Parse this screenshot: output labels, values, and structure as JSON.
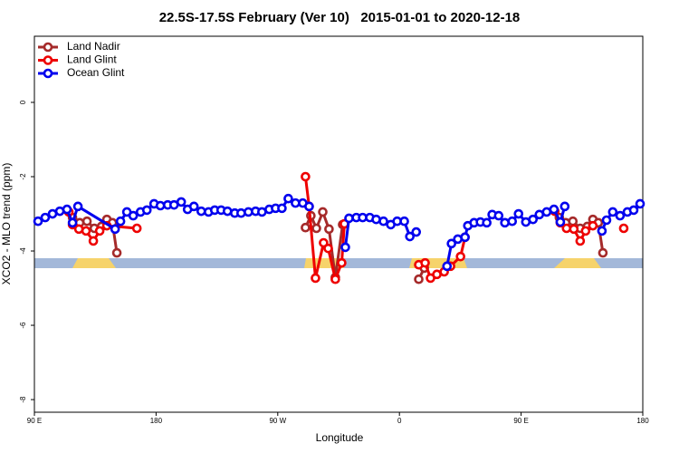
{
  "chart_data": {
    "type": "line",
    "title": "22.5S-17.5S February (Ver 10)   2015-01-01 to 2020-12-18",
    "x_label": "Longitude",
    "y_label": "XCO2 - MLO trend (ppm)",
    "xlim": [
      90,
      540
    ],
    "xticks": [
      {
        "value": 90,
        "label": "90 E"
      },
      180,
      {
        "value": 270,
        "label": "90 W"
      },
      {
        "value": 360,
        "label": "0"
      },
      {
        "value": 450,
        "label": "90 E"
      },
      {
        "value": 540,
        "label": "180"
      }
    ],
    "ylim": [
      -8.34,
      1.78
    ],
    "yticks": [
      0,
      -2,
      -4,
      -6,
      -8
    ],
    "legend": "top-left",
    "series": [
      {
        "name": "Land Nadir",
        "color": "#a52a2a",
        "x": [
          114.1,
          118.2,
          123.5,
          128.9,
          134.3,
          139.6,
          143.6,
          147.7,
          151.0,
          null,
          290.5,
          294.5,
          298.6,
          303.3,
          307.9,
          312.6,
          318.0,
          null,
          374.3,
          378.4,
          null,
          474.3,
          478.3,
          483.0,
          488.3,
          493.7,
          499.0,
          503.1,
          507.1,
          510.5
        ],
        "values": [
          -2.9,
          -3.1,
          -3.24,
          -3.2,
          -3.39,
          -3.34,
          -3.15,
          -3.24,
          -4.05,
          null,
          -3.37,
          -3.05,
          -3.39,
          -2.95,
          -3.41,
          -4.71,
          -3.29,
          null,
          -4.76,
          -4.46,
          null,
          -2.9,
          -3.1,
          -3.24,
          -3.2,
          -3.39,
          -3.34,
          -3.15,
          -3.24,
          -4.05
        ]
      },
      {
        "name": "Land Glint",
        "color": "#ee0000",
        "x": [
          115.5,
          118.2,
          122.9,
          128.2,
          133.6,
          138.3,
          143.6,
          165.8,
          null,
          290.5,
          293.2,
          297.9,
          303.9,
          307.3,
          312.6,
          317.3,
          319.3,
          null,
          374.3,
          379.0,
          383.0,
          387.7,
          393.1,
          397.8,
          405.2,
          408.5,
          null,
          474.9,
          479.0,
          483.6,
          489.0,
          493.7,
          497.7,
          503.1,
          null,
          525.9
        ],
        "values": [
          -2.95,
          -3.29,
          -3.41,
          -3.46,
          -3.73,
          -3.46,
          -3.32,
          -3.39,
          null,
          -2.0,
          -2.8,
          -4.73,
          -3.78,
          -3.93,
          -4.76,
          -4.32,
          -3.27,
          null,
          -4.37,
          -4.32,
          -4.73,
          -4.63,
          -4.56,
          -4.41,
          -4.15,
          -3.63,
          null,
          -2.93,
          -3.24,
          -3.39,
          -3.41,
          -3.73,
          -3.46,
          -3.32,
          null,
          -3.39
        ]
      },
      {
        "name": "Ocean Glint",
        "color": "#0000ee",
        "x": [
          92.7,
          98.0,
          103.4,
          108.8,
          114.1,
          118.2,
          122.2,
          149.7,
          153.7,
          158.4,
          163.1,
          168.5,
          173.2,
          178.5,
          183.2,
          188.6,
          193.3,
          198.6,
          203.3,
          208.0,
          213.4,
          218.8,
          223.4,
          228.1,
          232.8,
          238.2,
          242.9,
          248.3,
          253.6,
          258.3,
          263.7,
          268.4,
          273.1,
          277.8,
          283.1,
          288.5,
          293.2,
          null,
          320.0,
          322.7,
          328.1,
          332.8,
          338.1,
          342.8,
          348.2,
          353.6,
          358.3,
          363.6,
          367.7,
          372.4,
          null,
          395.2,
          398.5,
          403.2,
          408.5,
          410.6,
          415.2,
          419.9,
          424.6,
          428.6,
          433.4,
          438.0,
          443.4,
          448.1,
          453.5,
          458.8,
          463.5,
          468.9,
          474.3,
          479.0,
          482.3,
          null,
          509.8,
          513.2,
          517.8,
          523.2,
          528.6,
          533.3,
          538.0
        ],
        "values": [
          -3.2,
          -3.1,
          -3.0,
          -2.93,
          -2.88,
          -3.24,
          -2.8,
          -3.41,
          -3.2,
          -2.95,
          -3.05,
          -2.95,
          -2.9,
          -2.73,
          -2.78,
          -2.76,
          -2.76,
          -2.68,
          -2.88,
          -2.8,
          -2.93,
          -2.95,
          -2.9,
          -2.9,
          -2.93,
          -2.98,
          -2.98,
          -2.95,
          -2.93,
          -2.95,
          -2.88,
          -2.85,
          -2.85,
          -2.59,
          -2.71,
          -2.71,
          -2.8,
          null,
          -3.9,
          -3.12,
          -3.1,
          -3.1,
          -3.1,
          -3.15,
          -3.2,
          -3.29,
          -3.2,
          -3.2,
          -3.61,
          -3.49,
          null,
          -4.41,
          -3.8,
          -3.68,
          -3.63,
          -3.32,
          -3.24,
          -3.22,
          -3.24,
          -3.02,
          -3.05,
          -3.24,
          -3.2,
          -3.0,
          -3.22,
          -3.15,
          -3.02,
          -2.95,
          -2.88,
          -3.22,
          -2.8,
          null,
          -3.46,
          -3.17,
          -2.95,
          -3.05,
          -2.95,
          -2.9,
          -2.73
        ]
      }
    ]
  }
}
